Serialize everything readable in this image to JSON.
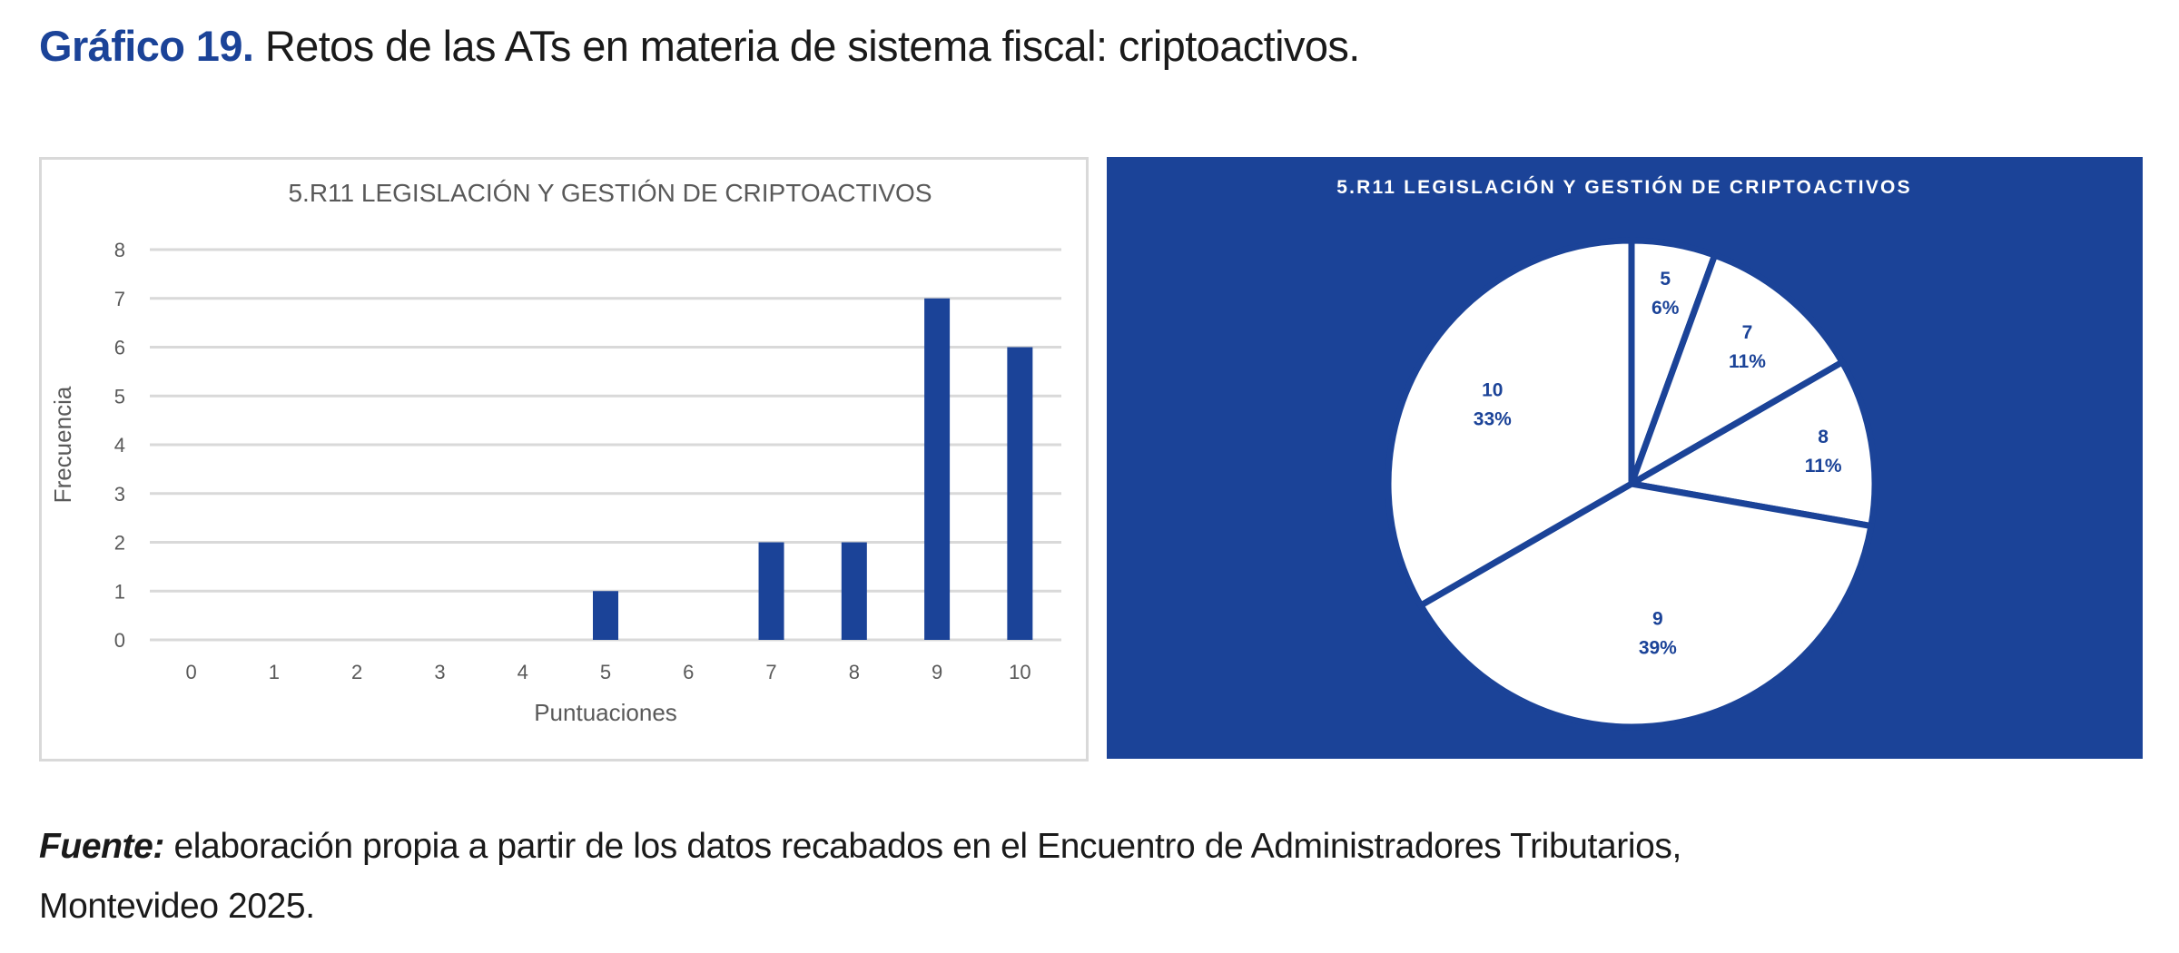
{
  "figure": {
    "label": "Gráfico 19.",
    "title": "Retos de las ATs en materia de sistema fiscal: criptoactivos."
  },
  "source": {
    "label": "Fuente:",
    "line1": "elaboración propia a partir de los datos recabados en el Encuentro de Administradores Tributarios,",
    "line2": "Montevideo 2025."
  },
  "colors": {
    "accent": "#1B4398",
    "bar": "#1B4398",
    "grid": "#d9d9d9",
    "axis_text": "#595959",
    "pie_fill": "#ffffff",
    "pie_background": "#1B4398"
  },
  "chart_data": [
    {
      "type": "bar",
      "title": "5.R11 LEGISLACIÓN Y GESTIÓN DE CRIPTOACTIVOS",
      "xlabel": "Puntuaciones",
      "ylabel": "Frecuencia",
      "categories": [
        "0",
        "1",
        "2",
        "3",
        "4",
        "5",
        "6",
        "7",
        "8",
        "9",
        "10"
      ],
      "values": [
        0,
        0,
        0,
        0,
        0,
        1,
        0,
        2,
        2,
        7,
        6
      ],
      "ylim": [
        0,
        8
      ],
      "yticks": [
        0,
        1,
        2,
        3,
        4,
        5,
        6,
        7,
        8
      ],
      "grid": true,
      "legend": "none"
    },
    {
      "type": "pie",
      "title": "5.R11 LEGISLACIÓN Y GESTIÓN DE CRIPTOACTIVOS",
      "slices": [
        {
          "label": "5",
          "value": 1,
          "percent": "6%"
        },
        {
          "label": "7",
          "value": 2,
          "percent": "11%"
        },
        {
          "label": "8",
          "value": 2,
          "percent": "11%"
        },
        {
          "label": "9",
          "value": 7,
          "percent": "39%"
        },
        {
          "label": "10",
          "value": 6,
          "percent": "33%"
        }
      ],
      "start": "top",
      "direction": "clockwise",
      "legend": "none"
    }
  ]
}
